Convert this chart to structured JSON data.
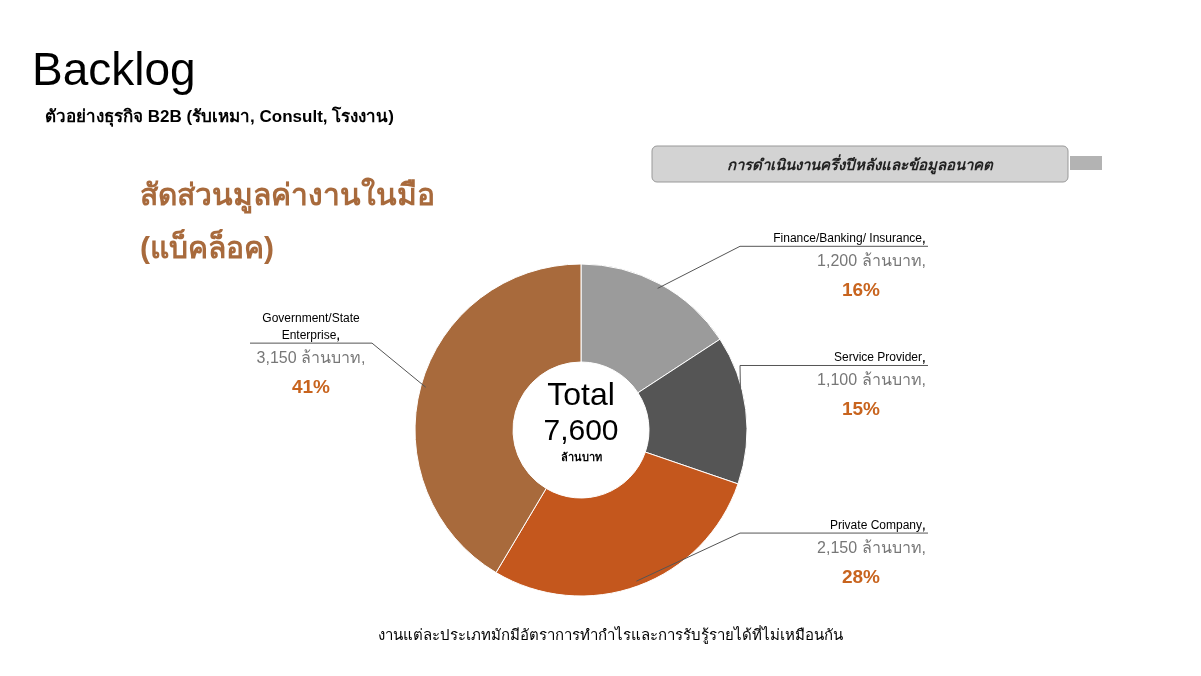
{
  "chart_data": {
    "type": "donut",
    "title": "Backlog",
    "subtitle": "ตัวอย่างธุรกิจ B2B (รับเหมา, Consult, โรงงาน)",
    "categories": [
      "Finance/Banking/ Insurance",
      "Service Provider",
      "Private Company",
      "Government/State Enterprise"
    ],
    "values": [
      1200,
      1100,
      2150,
      3150
    ],
    "colors": [
      "#9b9b9b",
      "#555555",
      "#c4571d",
      "#a86a3c"
    ],
    "value_labels": [
      "1,200 ล้านบาท,",
      "1,100 ล้านบาท,",
      "2,150 ล้านบาท,",
      "3,150 ล้านบาท,"
    ],
    "annotations": [
      "การดำเนินงานครึ่งปีหลังและข้อมูลอนาคต",
      "สัดส่วนมูลค่างานในมือ",
      "(แบ็คล็อค)",
      "Total",
      "7,600",
      "ล้านบาท",
      "งานแต่ละประเภทมักมีอัตราการทำกำไรและการรับรู้รายได้ที่ไม่เหมือนกัน",
      {
        "text": "16%",
        "x": "Finance/Banking/ Insurance"
      },
      {
        "text": "15%",
        "x": "Service Provider"
      },
      {
        "text": "28%",
        "x": "Private Company"
      },
      {
        "text": "41%",
        "x": "Government/State Enterprise"
      }
    ]
  }
}
